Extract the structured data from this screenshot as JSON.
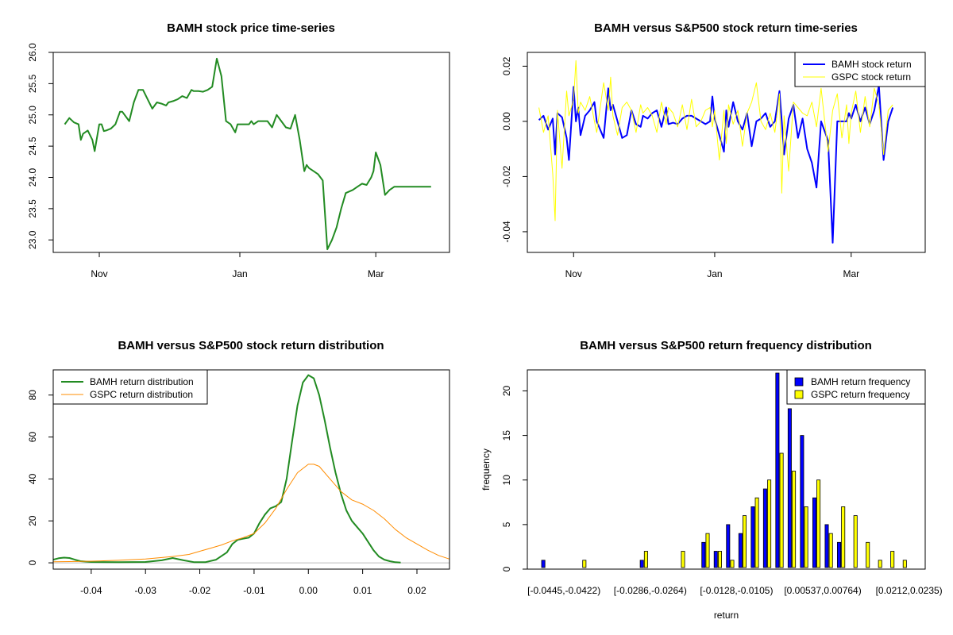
{
  "chart_data": [
    {
      "id": "price",
      "type": "line",
      "title": "BAMH stock price time-series",
      "xlabel": "",
      "ylabel": "",
      "xlim": [
        0,
        172
      ],
      "ylim": [
        22.8,
        26.0
      ],
      "x_ticks": [
        {
          "label": "Nov",
          "value": 20
        },
        {
          "label": "Jan",
          "value": 81
        },
        {
          "label": "Mar",
          "value": 140
        }
      ],
      "y_ticks": [
        23.0,
        23.5,
        24.0,
        24.5,
        25.0,
        25.5,
        26.0
      ],
      "y_tick_labels": [
        "23.0",
        "23.5",
        "24.0",
        "24.5",
        "25.0",
        "25.5",
        "26.0"
      ],
      "series": [
        {
          "color": "#228B22",
          "x": [
            5,
            7,
            9,
            11,
            12,
            13,
            15,
            17,
            18,
            20,
            21,
            22,
            23,
            25,
            27,
            29,
            30,
            33,
            35,
            36,
            37,
            39,
            41,
            43,
            45,
            47,
            49,
            50,
            52,
            54,
            56,
            58,
            60,
            61,
            63,
            65,
            67,
            69,
            71,
            73,
            75,
            77,
            79,
            80,
            81,
            83,
            85,
            86,
            87,
            89,
            91,
            93,
            95,
            97,
            99,
            101,
            103,
            105,
            107,
            109,
            110,
            111,
            113,
            115,
            117,
            119,
            121,
            123,
            125,
            127,
            130,
            132,
            134,
            136,
            138,
            139,
            140,
            142,
            144,
            146,
            148,
            150,
            152,
            154,
            156,
            158,
            159,
            161,
            164
          ],
          "y": [
            24.85,
            24.95,
            24.88,
            24.85,
            24.6,
            24.7,
            24.75,
            24.6,
            24.42,
            24.85,
            24.85,
            24.74,
            24.75,
            24.78,
            24.85,
            25.05,
            25.05,
            24.9,
            25.2,
            25.3,
            25.4,
            25.4,
            25.25,
            25.1,
            25.2,
            25.18,
            25.15,
            25.2,
            25.22,
            25.25,
            25.3,
            25.27,
            25.4,
            25.38,
            25.38,
            25.37,
            25.4,
            25.45,
            25.9,
            25.62,
            24.9,
            24.85,
            24.72,
            24.85,
            24.85,
            24.85,
            24.85,
            24.9,
            24.85,
            24.9,
            24.9,
            24.9,
            24.8,
            25.0,
            24.9,
            24.8,
            24.78,
            25.0,
            24.6,
            24.1,
            24.2,
            24.15,
            24.1,
            24.05,
            23.95,
            22.85,
            23.0,
            23.2,
            23.5,
            23.75,
            23.8,
            23.85,
            23.9,
            23.88,
            24.0,
            24.1,
            24.4,
            24.2,
            23.72,
            23.8,
            23.85,
            23.85,
            23.85,
            23.85,
            23.85,
            23.85,
            23.85,
            23.85,
            23.85
          ]
        }
      ]
    },
    {
      "id": "returns",
      "type": "line",
      "title": "BAMH versus S&P500 stock return time-series",
      "xlabel": "",
      "ylabel": "",
      "xlim": [
        0,
        172
      ],
      "ylim": [
        -0.0475,
        0.025
      ],
      "x_ticks": [
        {
          "label": "Nov",
          "value": 20
        },
        {
          "label": "Jan",
          "value": 81
        },
        {
          "label": "Mar",
          "value": 140
        }
      ],
      "y_ticks": [
        -0.04,
        -0.02,
        0.0,
        0.02
      ],
      "y_tick_labels": [
        "-0.04",
        "-0.02",
        "0.00",
        "0.02"
      ],
      "legend": {
        "position": "top-right",
        "entries": [
          "BAMH stock return",
          "GSPC stock return"
        ]
      },
      "series": [
        {
          "name": "BAMH stock return",
          "color": "#0000FF",
          "x": [
            5,
            7,
            9,
            11,
            12,
            13,
            15,
            17,
            18,
            20,
            21,
            22,
            23,
            25,
            27,
            29,
            30,
            33,
            35,
            36,
            37,
            39,
            41,
            43,
            45,
            47,
            49,
            50,
            52,
            54,
            56,
            58,
            60,
            61,
            63,
            65,
            67,
            69,
            71,
            73,
            75,
            77,
            79,
            80,
            81,
            83,
            85,
            86,
            87,
            89,
            91,
            93,
            95,
            97,
            99,
            101,
            103,
            105,
            107,
            109,
            110,
            111,
            113,
            115,
            117,
            119,
            121,
            123,
            125,
            127,
            130,
            132,
            134,
            136,
            138,
            139,
            140,
            142,
            144,
            146,
            148,
            150,
            152,
            154,
            156,
            158
          ],
          "y": [
            0.0005,
            0.002,
            -0.003,
            0.001,
            -0.012,
            0.003,
            0.0015,
            -0.006,
            -0.014,
            0.0125,
            0.0,
            0.005,
            -0.005,
            0.002,
            0.004,
            0.007,
            0.0,
            -0.006,
            0.012,
            0.004,
            0.006,
            0.0,
            -0.006,
            -0.005,
            0.004,
            -0.001,
            -0.002,
            0.002,
            0.001,
            0.003,
            0.004,
            -0.002,
            0.005,
            -0.001,
            -0.0005,
            -0.001,
            0.001,
            0.002,
            0.002,
            0.001,
            0.0,
            -0.001,
            0.0,
            0.009,
            0.001,
            -0.005,
            -0.011,
            0.004,
            -0.002,
            0.007,
            0.0,
            -0.003,
            0.003,
            -0.009,
            0.0,
            0.001,
            0.003,
            -0.002,
            0.0,
            0.011,
            0.0,
            -0.012,
            0.001,
            0.006,
            -0.006,
            0.001,
            -0.01,
            -0.015,
            -0.024,
            0.0,
            -0.007,
            -0.044,
            0.0,
            0.0,
            0.0,
            0.003,
            0.001,
            0.006,
            0.0,
            0.005,
            -0.001,
            0.004,
            0.013,
            -0.014,
            0.0,
            0.005
          ]
        },
        {
          "name": "GSPC stock return",
          "color": "#FFFF00",
          "x": [
            5,
            7,
            9,
            11,
            12,
            13,
            15,
            17,
            18,
            20,
            21,
            22,
            23,
            25,
            27,
            29,
            30,
            33,
            35,
            36,
            37,
            39,
            41,
            43,
            45,
            47,
            49,
            50,
            52,
            54,
            56,
            58,
            60,
            61,
            63,
            65,
            67,
            69,
            71,
            73,
            75,
            77,
            79,
            80,
            81,
            83,
            85,
            86,
            87,
            89,
            91,
            93,
            95,
            97,
            99,
            101,
            103,
            105,
            107,
            109,
            110,
            111,
            113,
            115,
            117,
            119,
            121,
            123,
            125,
            127,
            130,
            132,
            134,
            136,
            138,
            139,
            140,
            142,
            144,
            146,
            148,
            150,
            152,
            154,
            156,
            158
          ],
          "y": [
            0.005,
            -0.004,
            0.002,
            -0.019,
            -0.036,
            0.004,
            -0.017,
            0.011,
            0.002,
            0.008,
            0.022,
            0.003,
            0.007,
            0.004,
            0.009,
            0.0,
            -0.004,
            0.014,
            0.004,
            0.016,
            0.002,
            -0.005,
            0.005,
            0.007,
            0.004,
            -0.004,
            0.006,
            0.003,
            0.005,
            0.002,
            -0.004,
            0.007,
            -0.001,
            0.005,
            0.003,
            -0.002,
            0.006,
            -0.003,
            0.008,
            -0.002,
            0.0,
            0.004,
            0.005,
            -0.002,
            0.004,
            -0.014,
            0.004,
            -0.008,
            0.006,
            -0.001,
            0.004,
            -0.009,
            0.003,
            0.007,
            0.014,
            0.0,
            -0.003,
            0.003,
            -0.004,
            0.01,
            -0.026,
            0.002,
            -0.018,
            0.007,
            0.005,
            0.003,
            0.002,
            0.007,
            -0.002,
            0.012,
            -0.011,
            0.004,
            0.01,
            -0.006,
            0.006,
            -0.008,
            0.003,
            0.011,
            -0.004,
            0.009,
            -0.002,
            0.012,
            0.006,
            -0.012,
            0.004,
            0.006
          ]
        }
      ]
    },
    {
      "id": "density",
      "type": "line",
      "title": "BAMH versus S&P500 stock return distribution",
      "xlabel": "",
      "ylabel": "",
      "xlim": [
        -0.047,
        0.026
      ],
      "ylim": [
        -3,
        92
      ],
      "x_ticks": [
        -0.04,
        -0.03,
        -0.02,
        -0.01,
        0.0,
        0.01,
        0.02
      ],
      "x_tick_labels": [
        "-0.04",
        "-0.03",
        "-0.02",
        "-0.01",
        "0.00",
        "0.01",
        "0.02"
      ],
      "y_ticks": [
        0,
        20,
        40,
        60,
        80
      ],
      "y_tick_labels": [
        "0",
        "20",
        "40",
        "60",
        "80"
      ],
      "legend": {
        "position": "top-left",
        "entries": [
          "BAMH return distribution",
          "GSPC return distribution"
        ]
      },
      "series": [
        {
          "name": "BAMH return distribution",
          "color": "#228B22",
          "x": [
            -0.047,
            -0.046,
            -0.045,
            -0.044,
            -0.043,
            -0.042,
            -0.04,
            -0.035,
            -0.03,
            -0.027,
            -0.025,
            -0.023,
            -0.021,
            -0.019,
            -0.017,
            -0.015,
            -0.014,
            -0.013,
            -0.012,
            -0.011,
            -0.01,
            -0.009,
            -0.008,
            -0.007,
            -0.006,
            -0.005,
            -0.004,
            -0.003,
            -0.002,
            -0.001,
            0.0,
            0.001,
            0.002,
            0.003,
            0.004,
            0.005,
            0.006,
            0.007,
            0.008,
            0.009,
            0.01,
            0.011,
            0.012,
            0.013,
            0.014,
            0.015,
            0.016,
            0.017
          ],
          "y": [
            1.5,
            2.2,
            2.5,
            2.3,
            1.5,
            0.8,
            0.4,
            0.3,
            0.4,
            1.2,
            2.3,
            1.2,
            0.3,
            0.3,
            1.5,
            5,
            9,
            11,
            11.5,
            12,
            14,
            19,
            23,
            26,
            27,
            29,
            40,
            58,
            75,
            86,
            89.5,
            88,
            80,
            68,
            55,
            43,
            33,
            25,
            20,
            17,
            14,
            10,
            6,
            3,
            1.5,
            0.8,
            0.3,
            0.1
          ]
        },
        {
          "name": "GSPC return distribution",
          "color": "#FF8C00",
          "x": [
            -0.047,
            -0.044,
            -0.04,
            -0.035,
            -0.03,
            -0.025,
            -0.022,
            -0.02,
            -0.018,
            -0.016,
            -0.014,
            -0.012,
            -0.01,
            -0.008,
            -0.006,
            -0.004,
            -0.002,
            0.0,
            0.001,
            0.002,
            0.004,
            0.006,
            0.008,
            0.01,
            0.012,
            0.014,
            0.016,
            0.018,
            0.02,
            0.022,
            0.024,
            0.026
          ],
          "y": [
            0.5,
            0.6,
            0.8,
            1.2,
            1.8,
            3,
            4,
            5.5,
            7,
            8.5,
            10.5,
            12,
            14,
            19,
            26,
            35,
            43,
            47,
            47,
            46,
            40,
            34,
            30,
            28,
            25,
            21,
            16,
            12,
            9,
            6,
            3.5,
            1.8
          ]
        }
      ]
    },
    {
      "id": "histogram",
      "type": "bar",
      "title": "BAMH versus S&P500 return frequency distribution",
      "xlabel": "return",
      "ylabel": "frequency",
      "ylim": [
        0,
        22
      ],
      "y_ticks": [
        0,
        5,
        10,
        15,
        20
      ],
      "y_tick_labels": [
        "0",
        "5",
        "10",
        "15",
        "20"
      ],
      "x_tick_labels": [
        {
          "label": "[-0.0445,-0.0422)",
          "index": 0
        },
        {
          "label": "[-0.0286,-0.0264)",
          "index": 7
        },
        {
          "label": "[-0.0128,-0.0105)",
          "index": 14
        },
        {
          "label": "[0.00537,0.00764)",
          "index": 21
        },
        {
          "label": "[0.0212,0.0235)",
          "index": 28
        }
      ],
      "legend": {
        "position": "top-right",
        "entries": [
          "BAMH return frequency",
          "GSPC return frequency"
        ]
      },
      "series": [
        {
          "name": "BAMH return frequency",
          "color": "#0000FF",
          "values": [
            1,
            0,
            0,
            0,
            0,
            0,
            0,
            0,
            1,
            0,
            0,
            0,
            0,
            3,
            2,
            5,
            4,
            7,
            9,
            22,
            18,
            15,
            8,
            5,
            3,
            0,
            0,
            0,
            0,
            0,
            0
          ]
        },
        {
          "name": "GSPC return frequency",
          "color": "#FFFF00",
          "values": [
            0,
            0,
            0,
            1,
            0,
            0,
            0,
            0,
            2,
            0,
            0,
            2,
            0,
            4,
            2,
            1,
            6,
            8,
            10,
            13,
            11,
            7,
            10,
            4,
            7,
            6,
            3,
            1,
            2,
            1,
            0
          ]
        }
      ]
    }
  ]
}
